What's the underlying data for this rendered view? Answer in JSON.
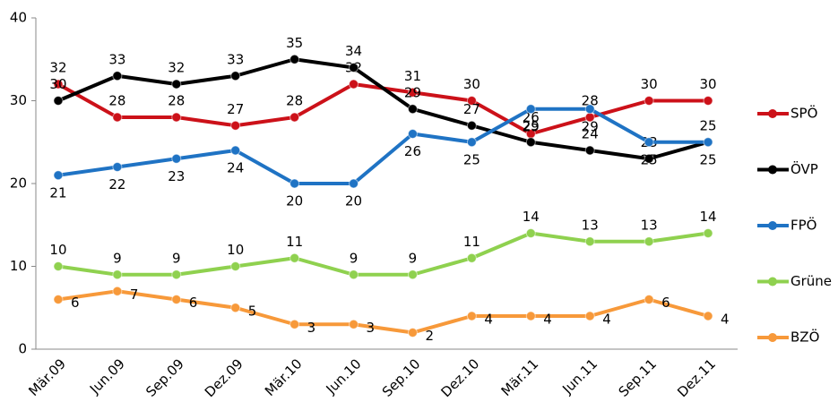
{
  "chart_data": {
    "type": "line",
    "categories": [
      "Mär.09",
      "Jun.09",
      "Sep.09",
      "Dez.09",
      "Mär.10",
      "Jun.10",
      "Sep.10",
      "Dez.10",
      "Mär.11",
      "Jun.11",
      "Sep.11",
      "Dez.11"
    ],
    "series": [
      {
        "name": "SPÖ",
        "color": "#cc1119",
        "values": [
          32,
          28,
          28,
          27,
          28,
          32,
          31,
          30,
          26,
          28,
          30,
          30
        ]
      },
      {
        "name": "ÖVP",
        "color": "#000000",
        "values": [
          30,
          33,
          32,
          33,
          35,
          34,
          29,
          27,
          25,
          24,
          23,
          25
        ]
      },
      {
        "name": "FPÖ",
        "color": "#1f73c4",
        "values": [
          21,
          22,
          23,
          24,
          20,
          20,
          26,
          25,
          29,
          29,
          25,
          25
        ]
      },
      {
        "name": "Grüne",
        "color": "#8fd14f",
        "values": [
          10,
          9,
          9,
          10,
          11,
          9,
          9,
          11,
          14,
          13,
          13,
          14
        ]
      },
      {
        "name": "BZÖ",
        "color": "#f7993a",
        "values": [
          6,
          7,
          6,
          5,
          3,
          3,
          2,
          4,
          4,
          4,
          6,
          4
        ]
      }
    ],
    "ylim": [
      0,
      40
    ],
    "yticks": [
      0,
      10,
      20,
      30,
      40
    ],
    "grid": false,
    "legend": "right"
  }
}
